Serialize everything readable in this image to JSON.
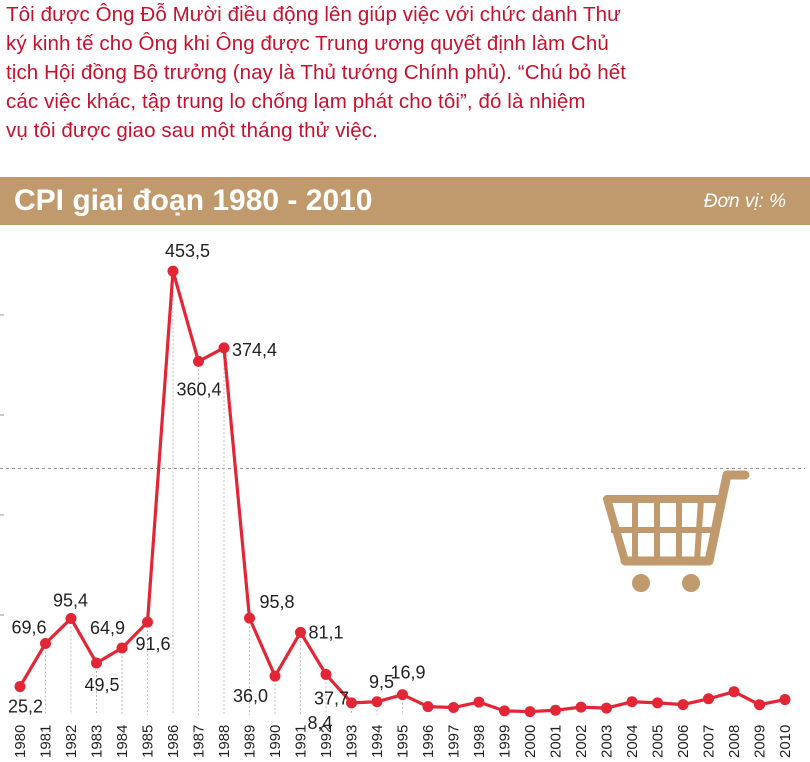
{
  "intro": {
    "line1": "Tôi được Ông Đỗ Mười điều động lên giúp việc với chức danh Thư",
    "line2": "ký kinh tế cho Ông khi Ông được Trung ương quyết định làm Chủ",
    "line3": "tịch Hội đồng Bộ trưởng (nay là Thủ tướng Chính phủ). “Chú bỏ hết",
    "line4": "các việc khác, tập trung lo chống lạm phát cho tôi”, đó là nhiệm",
    "line5": "vụ tôi được giao sau một tháng thử việc."
  },
  "header": {
    "title": "CPI giai đoạn 1980 - 2010",
    "unit": "Đơn vị: %"
  },
  "icon": "shopping-cart-icon",
  "colors": {
    "text_red": "#c8102e",
    "line": "#e32636",
    "bar": "#c09a6c",
    "icon": "#c09a6c"
  },
  "chart_data": {
    "type": "line",
    "title": "CPI giai đoạn 1980 - 2010",
    "unit": "Đơn vị: %",
    "x": [
      "1980",
      "1981",
      "1982",
      "1983",
      "1984",
      "1985",
      "1986",
      "1987",
      "1988",
      "1989",
      "1990",
      "1991",
      "1992",
      "1993",
      "1994",
      "1995",
      "1996",
      "1997",
      "1998",
      "1999",
      "2000",
      "2001",
      "2002",
      "2003",
      "2004",
      "2005",
      "2006",
      "2007",
      "2008",
      "2009",
      "2010"
    ],
    "values": [
      25.2,
      69.6,
      95.4,
      49.5,
      64.9,
      91.6,
      453.5,
      360.4,
      374.4,
      95.8,
      36.0,
      81.1,
      37.7,
      8.4,
      9.5,
      16.9,
      4.5,
      3.6,
      9.2,
      0.1,
      -0.6,
      0.8,
      4.0,
      3.0,
      9.5,
      8.4,
      6.6,
      12.6,
      19.9,
      6.5,
      11.8
    ],
    "data_labels": {
      "1980": "25,2",
      "1981": "69,6",
      "1982": "95,4",
      "1983": "49,5",
      "1984": "64,9",
      "1985": "91,6",
      "1986": "453,5",
      "1987": "360,4",
      "1988": "374,4",
      "1989": "95,8",
      "1990": "36,0",
      "1991": "81,1",
      "1992": "37,7",
      "1993": "8,4",
      "1994": "9,5",
      "1995": "16,9"
    },
    "reference_line": 250,
    "grid": false
  }
}
